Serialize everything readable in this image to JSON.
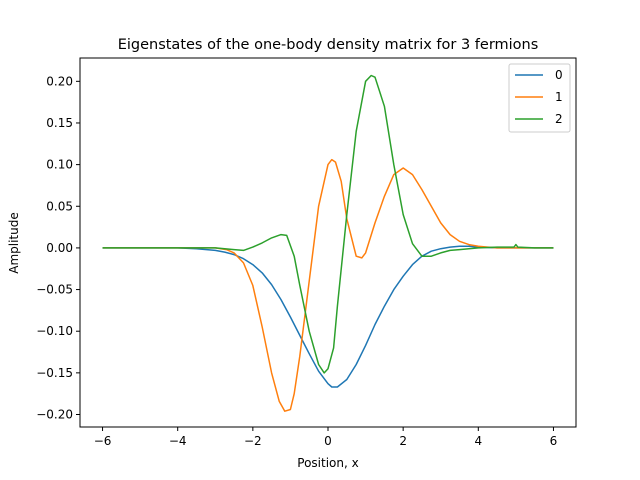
{
  "chart_data": {
    "type": "line",
    "title": "Eigenstates of the one-body density matrix for 3 fermions",
    "xlabel": "Position, x",
    "ylabel": "Amplitude",
    "xlim": [
      -6.6,
      6.6
    ],
    "ylim": [
      -0.215,
      0.228
    ],
    "xticks": [
      -6,
      -4,
      -2,
      0,
      2,
      4,
      6
    ],
    "xtick_labels": [
      "−6",
      "−4",
      "−2",
      "0",
      "2",
      "4",
      "6"
    ],
    "yticks": [
      -0.2,
      -0.15,
      -0.1,
      -0.05,
      0.0,
      0.05,
      0.1,
      0.15,
      0.2
    ],
    "ytick_labels": [
      "−0.20",
      "−0.15",
      "−0.10",
      "−0.05",
      "0.00",
      "0.05",
      "0.10",
      "0.15",
      "0.20"
    ],
    "grid": false,
    "legend_position": "top-right",
    "series": [
      {
        "name": "0",
        "color": "#1f77b4",
        "x": [
          -6.0,
          -5.0,
          -4.0,
          -3.5,
          -3.0,
          -2.75,
          -2.5,
          -2.25,
          -2.0,
          -1.75,
          -1.5,
          -1.25,
          -1.0,
          -0.75,
          -0.5,
          -0.25,
          0.0,
          0.1,
          0.25,
          0.5,
          0.75,
          1.0,
          1.25,
          1.5,
          1.75,
          2.0,
          2.25,
          2.5,
          2.75,
          3.0,
          3.25,
          3.5,
          3.75,
          4.0,
          4.5,
          5.0,
          6.0
        ],
        "y": [
          0.0,
          0.0,
          0.0,
          -0.001,
          -0.003,
          -0.005,
          -0.008,
          -0.013,
          -0.02,
          -0.03,
          -0.044,
          -0.062,
          -0.083,
          -0.105,
          -0.127,
          -0.148,
          -0.163,
          -0.167,
          -0.167,
          -0.158,
          -0.14,
          -0.117,
          -0.092,
          -0.07,
          -0.05,
          -0.034,
          -0.02,
          -0.01,
          -0.004,
          -0.001,
          0.001,
          0.002,
          0.002,
          0.001,
          0.0,
          0.0,
          0.0
        ]
      },
      {
        "name": "1",
        "color": "#ff7f0e",
        "x": [
          -6.0,
          -4.0,
          -3.0,
          -2.7,
          -2.5,
          -2.25,
          -2.0,
          -1.75,
          -1.5,
          -1.3,
          -1.15,
          -1.0,
          -0.9,
          -0.75,
          -0.5,
          -0.25,
          0.0,
          0.1,
          0.2,
          0.35,
          0.5,
          0.75,
          0.9,
          1.0,
          1.25,
          1.5,
          1.75,
          2.0,
          2.25,
          2.5,
          2.75,
          3.0,
          3.25,
          3.5,
          3.75,
          4.0,
          4.25,
          4.5,
          5.0,
          6.0
        ],
        "y": [
          0.0,
          0.0,
          0.0,
          -0.002,
          -0.006,
          -0.018,
          -0.045,
          -0.095,
          -0.15,
          -0.184,
          -0.196,
          -0.194,
          -0.175,
          -0.13,
          -0.04,
          0.05,
          0.1,
          0.106,
          0.103,
          0.08,
          0.035,
          -0.01,
          -0.012,
          -0.006,
          0.03,
          0.062,
          0.088,
          0.096,
          0.088,
          0.07,
          0.05,
          0.03,
          0.016,
          0.008,
          0.004,
          0.002,
          0.001,
          0.0,
          0.0,
          0.0
        ]
      },
      {
        "name": "2",
        "color": "#2ca02c",
        "x": [
          -6.0,
          -4.0,
          -3.0,
          -2.5,
          -2.25,
          -2.0,
          -1.75,
          -1.5,
          -1.25,
          -1.1,
          -0.9,
          -0.75,
          -0.5,
          -0.25,
          -0.1,
          0.0,
          0.15,
          0.25,
          0.5,
          0.75,
          1.0,
          1.15,
          1.25,
          1.5,
          1.75,
          2.0,
          2.25,
          2.5,
          2.75,
          3.0,
          3.25,
          3.5,
          3.75,
          4.0,
          4.5,
          4.95,
          5.0,
          5.05,
          5.5,
          6.0
        ],
        "y": [
          0.0,
          0.0,
          0.0,
          -0.002,
          -0.003,
          0.001,
          0.006,
          0.012,
          0.016,
          0.015,
          -0.01,
          -0.045,
          -0.1,
          -0.14,
          -0.15,
          -0.145,
          -0.12,
          -0.07,
          0.04,
          0.14,
          0.2,
          0.207,
          0.205,
          0.17,
          0.1,
          0.04,
          0.005,
          -0.01,
          -0.01,
          -0.006,
          -0.003,
          -0.002,
          -0.001,
          0.0,
          0.001,
          0.001,
          0.004,
          0.001,
          0.0,
          0.0
        ]
      }
    ]
  }
}
